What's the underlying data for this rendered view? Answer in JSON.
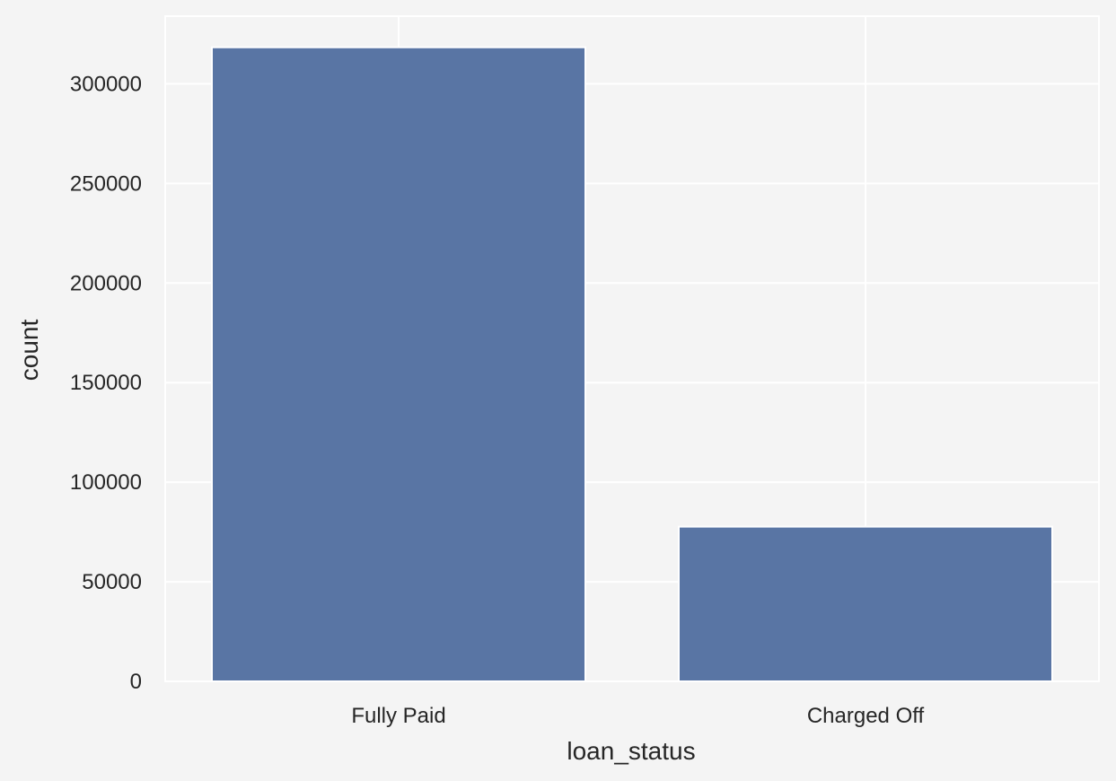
{
  "chart_data": {
    "type": "bar",
    "categories": [
      "Fully Paid",
      "Charged Off"
    ],
    "values": [
      318357,
      77673
    ],
    "xlabel": "loan_status",
    "ylabel": "count",
    "ylim": [
      0,
      334000
    ],
    "yticks": [
      0,
      50000,
      100000,
      150000,
      200000,
      250000,
      300000
    ],
    "ytick_labels": [
      "0",
      "50000",
      "100000",
      "150000",
      "200000",
      "250000",
      "300000"
    ],
    "grid": true,
    "colors": {
      "bar": "#5975a4",
      "background": "#f4f4f4",
      "grid": "#ffffff",
      "text": "#262626"
    }
  }
}
